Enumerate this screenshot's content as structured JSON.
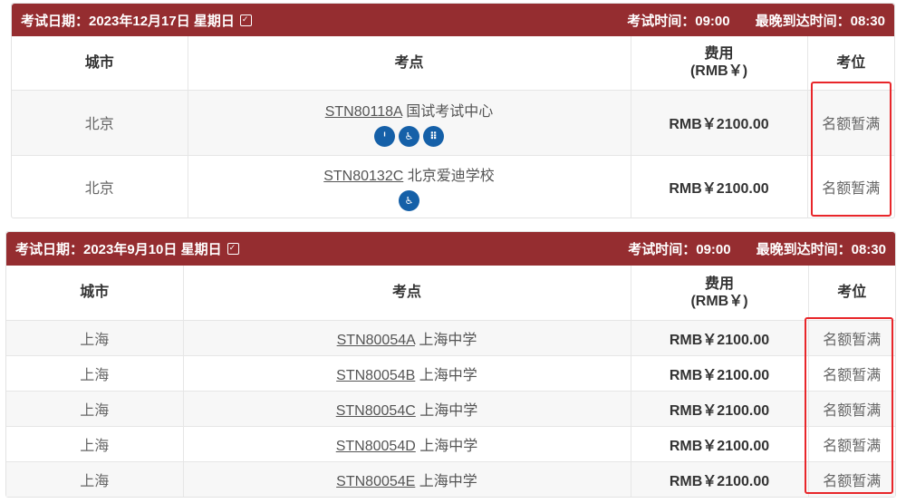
{
  "sessions": [
    {
      "date_label": "考试日期：2023年12月17日 星期日",
      "exam_time": "考试时间：09:00",
      "latest_arrival": "最晚到达时间：08:30",
      "headers": {
        "city": "城市",
        "site": "考点",
        "fee_line1": "费用",
        "fee_line2": "(RMB￥)",
        "seat": "考位"
      },
      "rows": [
        {
          "city": "北京",
          "code": "STN80118A",
          "name": "国试考试中心",
          "fee": "RMB￥2100.00",
          "seat": "名额暂满",
          "icons": [
            "accessibility-hearing-icon",
            "accessibility-wheelchair-icon",
            "accessibility-braille-icon"
          ]
        },
        {
          "city": "北京",
          "code": "STN80132C",
          "name": "北京爱迪学校",
          "fee": "RMB￥2100.00",
          "seat": "名额暂满",
          "icons": [
            "accessibility-wheelchair-icon"
          ]
        }
      ]
    },
    {
      "date_label": "考试日期：2023年9月10日 星期日",
      "exam_time": "考试时间：09:00",
      "latest_arrival": "最晚到达时间：08:30",
      "headers": {
        "city": "城市",
        "site": "考点",
        "fee_line1": "费用",
        "fee_line2": "(RMB￥)",
        "seat": "考位"
      },
      "rows": [
        {
          "city": "上海",
          "code": "STN80054A",
          "name": "上海中学",
          "fee": "RMB￥2100.00",
          "seat": "名额暂满"
        },
        {
          "city": "上海",
          "code": "STN80054B",
          "name": "上海中学",
          "fee": "RMB￥2100.00",
          "seat": "名额暂满"
        },
        {
          "city": "上海",
          "code": "STN80054C",
          "name": "上海中学",
          "fee": "RMB￥2100.00",
          "seat": "名额暂满"
        },
        {
          "city": "上海",
          "code": "STN80054D",
          "name": "上海中学",
          "fee": "RMB￥2100.00",
          "seat": "名额暂满"
        },
        {
          "city": "上海",
          "code": "STN80054E",
          "name": "上海中学",
          "fee": "RMB￥2100.00",
          "seat": "名额暂满"
        }
      ]
    }
  ],
  "colors": {
    "header_bar": "#952d30",
    "icon_blue": "#1560a8",
    "highlight_box": "#e8262a"
  },
  "icon_glyphs": {
    "accessibility-hearing-icon": "ᑊ",
    "accessibility-wheelchair-icon": "♿",
    "accessibility-braille-icon": "⠿"
  }
}
